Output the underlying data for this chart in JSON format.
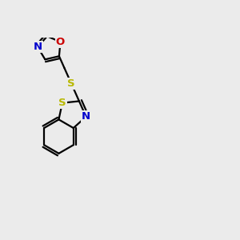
{
  "background_color": "#ebebeb",
  "bond_color": "#000000",
  "bond_width": 1.6,
  "S_color": "#b8b800",
  "N_color": "#0000cc",
  "O_color": "#cc0000",
  "font_size": 9.5,
  "xlim": [
    -1.5,
    8.5
  ],
  "ylim": [
    -2.5,
    4.5
  ]
}
